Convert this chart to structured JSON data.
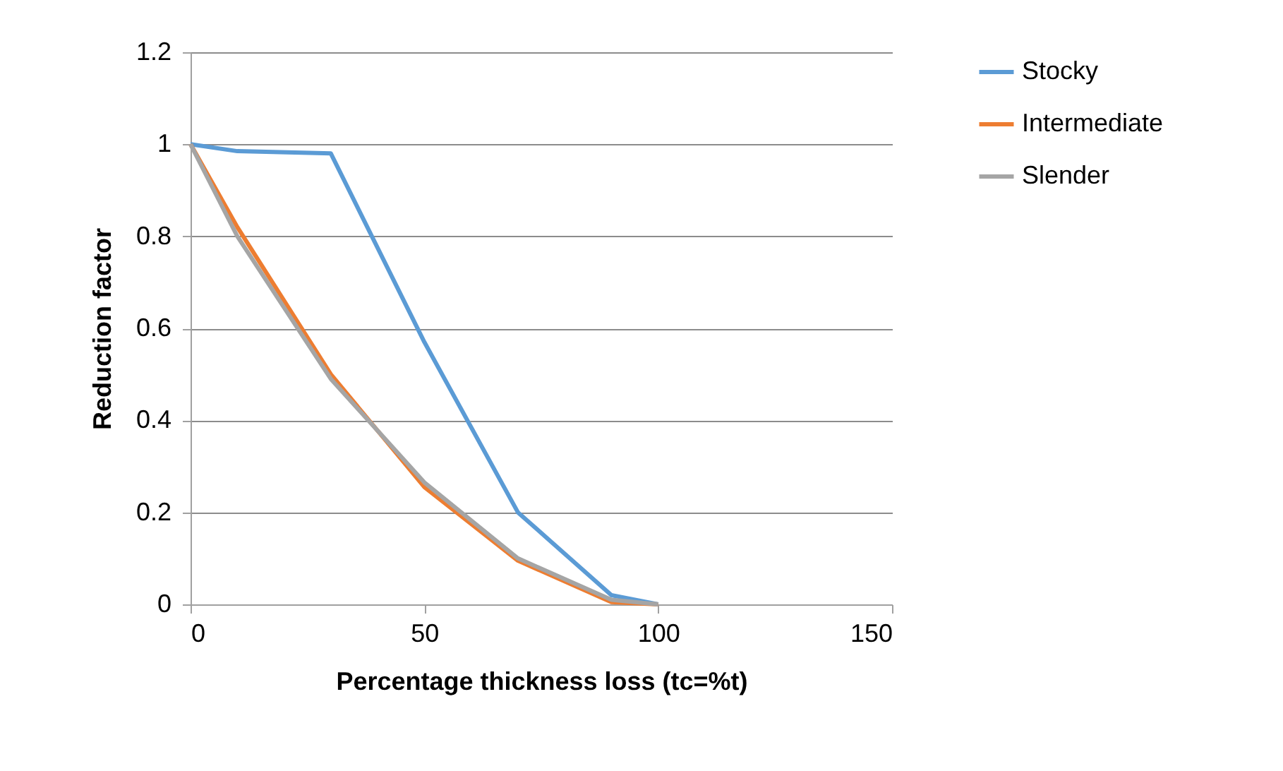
{
  "chart_data": {
    "type": "line",
    "xlabel": "Percentage thickness loss (tc=%t)",
    "ylabel": "Reduction factor",
    "x": [
      0,
      10,
      30,
      50,
      70,
      90,
      100
    ],
    "series": [
      {
        "name": "Stocky",
        "color": "#5b9bd5",
        "values": [
          1,
          0.985,
          0.98,
          0.57,
          0.2,
          0.02,
          0
        ]
      },
      {
        "name": "Intermediate",
        "color": "#ed7d31",
        "values": [
          1,
          0.82,
          0.5,
          0.255,
          0.095,
          0.005,
          0
        ]
      },
      {
        "name": "Slender",
        "color": "#a5a5a5",
        "values": [
          1,
          0.8,
          0.49,
          0.265,
          0.1,
          0.01,
          0
        ]
      }
    ],
    "xlim": [
      0,
      150
    ],
    "xticks": [
      0,
      50,
      100,
      150
    ],
    "ylim": [
      0,
      1.2
    ],
    "yticks": [
      0,
      0.2,
      0.4,
      0.6,
      0.8,
      1,
      1.2
    ],
    "grid": "y",
    "legend": "right",
    "marker": "none",
    "line_style": "solid"
  }
}
